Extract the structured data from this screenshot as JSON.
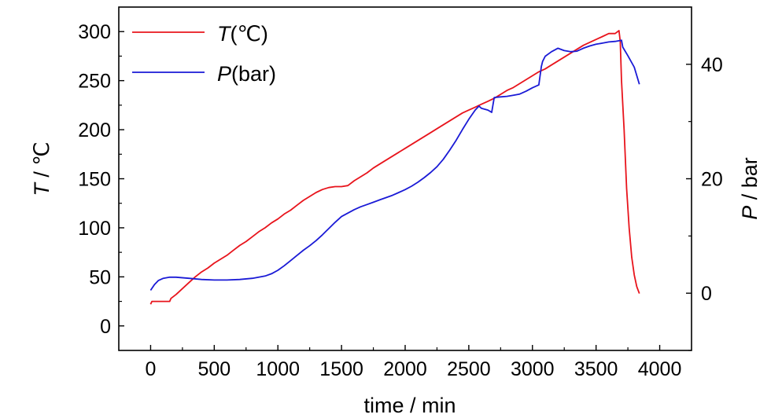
{
  "chart_data": {
    "type": "line",
    "xlabel": "time / min",
    "ylabel": {
      "var": "T",
      "unit": " / ℃"
    },
    "y2label": {
      "var": "P",
      "unit": " / bar"
    },
    "xlim": [
      -250,
      4250
    ],
    "ylim": [
      -25,
      325
    ],
    "y2lim": [
      -10,
      50
    ],
    "x_ticks": [
      "0",
      "500",
      "1000",
      "1500",
      "2000",
      "2500",
      "3000",
      "3500",
      "4000"
    ],
    "y_ticks": [
      "0",
      "50",
      "100",
      "150",
      "200",
      "250",
      "300"
    ],
    "y2_ticks": [
      "0",
      "20",
      "40"
    ],
    "grid": false,
    "legend_position": "top-left",
    "series": [
      {
        "name": {
          "var": "T",
          "unit": "(℃)"
        },
        "axis": "left",
        "color": "#e8141c",
        "x": [
          0,
          10,
          20,
          150,
          160,
          200,
          250,
          300,
          350,
          400,
          450,
          500,
          550,
          600,
          650,
          700,
          750,
          800,
          850,
          900,
          950,
          1000,
          1050,
          1100,
          1150,
          1200,
          1250,
          1300,
          1350,
          1400,
          1450,
          1500,
          1550,
          1600,
          1650,
          1700,
          1750,
          1800,
          1850,
          1900,
          1950,
          2000,
          2050,
          2100,
          2150,
          2200,
          2250,
          2300,
          2350,
          2400,
          2450,
          2500,
          2550,
          2600,
          2650,
          2700,
          2750,
          2800,
          2850,
          2900,
          2950,
          3000,
          3050,
          3100,
          3150,
          3200,
          3250,
          3300,
          3350,
          3400,
          3450,
          3500,
          3550,
          3600,
          3650,
          3680,
          3690,
          3700,
          3720,
          3740,
          3760,
          3780,
          3800,
          3820,
          3840
        ],
        "values": [
          22,
          25,
          25,
          25,
          28,
          32,
          38,
          44,
          50,
          55,
          59,
          64,
          68,
          72,
          77,
          82,
          86,
          91,
          96,
          100,
          105,
          109,
          114,
          118,
          123,
          128,
          132,
          136,
          139,
          141,
          142,
          142,
          143,
          148,
          152,
          156,
          161,
          165,
          169,
          173,
          177,
          181,
          185,
          189,
          193,
          197,
          201,
          205,
          209,
          213,
          217,
          220,
          223,
          226,
          229,
          232,
          236,
          240,
          243,
          247,
          251,
          255,
          259,
          262,
          266,
          270,
          274,
          278,
          282,
          286,
          289,
          292,
          295,
          298,
          298,
          301,
          290,
          250,
          200,
          140,
          100,
          70,
          52,
          40,
          33
        ]
      },
      {
        "name": {
          "var": "P",
          "unit": "(bar)"
        },
        "axis": "right",
        "color": "#1a1ad6",
        "x": [
          0,
          30,
          60,
          100,
          150,
          200,
          300,
          400,
          500,
          600,
          700,
          800,
          850,
          900,
          950,
          1000,
          1050,
          1100,
          1150,
          1200,
          1250,
          1300,
          1350,
          1400,
          1450,
          1500,
          1550,
          1600,
          1650,
          1700,
          1750,
          1800,
          1850,
          1900,
          1950,
          2000,
          2050,
          2100,
          2150,
          2200,
          2250,
          2300,
          2350,
          2400,
          2450,
          2500,
          2550,
          2580,
          2600,
          2650,
          2680,
          2700,
          2750,
          2800,
          2850,
          2900,
          2950,
          3000,
          3050,
          3060,
          3070,
          3080,
          3100,
          3150,
          3200,
          3250,
          3300,
          3350,
          3400,
          3450,
          3500,
          3550,
          3600,
          3650,
          3700,
          3710,
          3750,
          3800,
          3840
        ],
        "values": [
          0.5,
          1.5,
          2.2,
          2.6,
          2.8,
          2.8,
          2.6,
          2.4,
          2.3,
          2.3,
          2.4,
          2.6,
          2.8,
          3.0,
          3.4,
          4.0,
          4.8,
          5.7,
          6.6,
          7.5,
          8.3,
          9.2,
          10.2,
          11.3,
          12.4,
          13.4,
          14.0,
          14.6,
          15.1,
          15.5,
          15.9,
          16.3,
          16.7,
          17.1,
          17.6,
          18.1,
          18.7,
          19.4,
          20.2,
          21.1,
          22.1,
          23.4,
          25.0,
          26.7,
          28.6,
          30.4,
          32.0,
          32.7,
          32.3,
          32.0,
          31.6,
          34.2,
          34.3,
          34.4,
          34.6,
          34.8,
          35.3,
          35.9,
          36.4,
          38.0,
          39.6,
          40.5,
          41.4,
          42.2,
          42.8,
          42.4,
          42.2,
          42.3,
          42.8,
          43.2,
          43.5,
          43.7,
          43.9,
          44.0,
          44.2,
          43.0,
          41.5,
          39.5,
          36.5
        ]
      }
    ]
  }
}
